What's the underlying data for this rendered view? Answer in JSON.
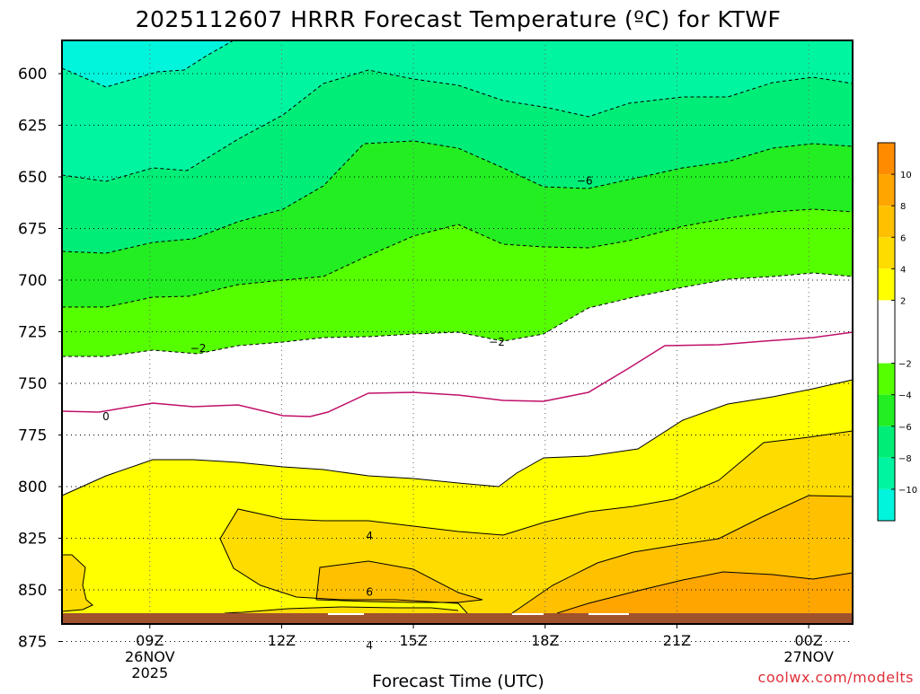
{
  "chart_data": {
    "type": "heatmap",
    "title": "2025112607 HRRR Forecast Temperature (ºC) for KTWF",
    "xlabel": "Forecast Time (UTC)",
    "ylabel": "",
    "credit": "coolwx.com/modelts",
    "x_units": "hours since 2025-11-26 07Z",
    "xlim": [
      0,
      18
    ],
    "ylim_hpa": [
      588,
      880
    ],
    "x_ticks": [
      {
        "x": 2,
        "label": "09Z",
        "sub1": "26NOV",
        "sub2": "2025"
      },
      {
        "x": 5,
        "label": "12Z",
        "sub1": "",
        "sub2": ""
      },
      {
        "x": 8,
        "label": "15Z",
        "sub1": "",
        "sub2": ""
      },
      {
        "x": 11,
        "label": "18Z",
        "sub1": "",
        "sub2": ""
      },
      {
        "x": 14,
        "label": "21Z",
        "sub1": "",
        "sub2": ""
      },
      {
        "x": 17,
        "label": "00Z",
        "sub1": "27NOV",
        "sub2": ""
      }
    ],
    "y_ticks": [
      600,
      625,
      650,
      675,
      700,
      725,
      750,
      775,
      800,
      825,
      850,
      875
    ],
    "colorbar": {
      "ticks": [
        10,
        8,
        6,
        4,
        2,
        -2,
        -4,
        -6,
        -8,
        -10
      ],
      "bands": [
        {
          "from": 10,
          "to": 12,
          "color": "#ff8c00"
        },
        {
          "from": 8,
          "to": 10,
          "color": "#ffa500"
        },
        {
          "from": 6,
          "to": 8,
          "color": "#ffc000"
        },
        {
          "from": 4,
          "to": 6,
          "color": "#ffdc00"
        },
        {
          "from": 2,
          "to": 4,
          "color": "#ffff00"
        },
        {
          "from": -2,
          "to": 2,
          "color": "#ffffff"
        },
        {
          "from": -4,
          "to": -2,
          "color": "#55ff00"
        },
        {
          "from": -6,
          "to": -4,
          "color": "#22ee22"
        },
        {
          "from": -8,
          "to": -6,
          "color": "#00ee77"
        },
        {
          "from": -10,
          "to": -8,
          "color": "#00f5a0"
        },
        {
          "from": -12,
          "to": -10,
          "color": "#00f5dc"
        }
      ]
    },
    "fills": [
      {
        "level": "-12 to -10",
        "color": "#00f5dc"
      },
      {
        "level": "-10 to -8",
        "color": "#00f5a0"
      },
      {
        "level": "-8 to -6",
        "color": "#00ee77"
      },
      {
        "level": "-6 to -4",
        "color": "#22ee22"
      },
      {
        "level": "-4 to -2",
        "color": "#55ff00"
      },
      {
        "level": "-2 to 2",
        "color": "#ffffff"
      },
      {
        "level": "2 to 4",
        "color": "#ffff00"
      },
      {
        "level": "4 to 6",
        "color": "#ffdc00"
      },
      {
        "level": "6 to 8",
        "color": "#ffc000"
      },
      {
        "level": "8 to 10",
        "color": "#ffa500"
      },
      {
        "level": "ground",
        "color": "#a0522d"
      }
    ],
    "contour_labels": [
      {
        "text": "−6",
        "x": 11.9,
        "y": 652
      },
      {
        "text": "−2",
        "x": 3.1,
        "y": 733
      },
      {
        "text": "−2",
        "x": 9.9,
        "y": 730
      },
      {
        "text": "0",
        "x": 1.0,
        "y": 766
      },
      {
        "text": "4",
        "x": 7.0,
        "y": 824
      },
      {
        "text": "6",
        "x": 7.0,
        "y": 851
      },
      {
        "text": "4",
        "x": 7.0,
        "y": 877
      }
    ]
  }
}
